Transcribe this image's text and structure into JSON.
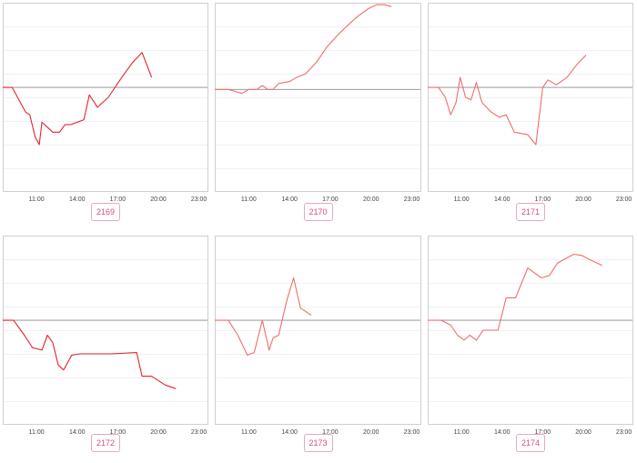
{
  "chart_data": [
    {
      "type": "line",
      "label": "2169",
      "line_color": "#e8212b",
      "x_ticks": [
        "11:00",
        "14:00",
        "17:00",
        "20:00",
        "23:00"
      ],
      "x_range": [
        8.5,
        23.7
      ],
      "y_range": [
        -4.2,
        3.4
      ],
      "baseline": 0,
      "x": [
        8.5,
        9.2,
        9.8,
        10.2,
        10.5,
        10.9,
        11.2,
        11.4,
        12.2,
        12.7,
        13.1,
        13.5,
        14.5,
        14.9,
        15.5,
        16.3,
        17.3,
        18.1,
        18.8,
        19.5
      ],
      "y": [
        0,
        0,
        -0.6,
        -1.0,
        -1.1,
        -2.0,
        -2.3,
        -1.4,
        -1.8,
        -1.8,
        -1.5,
        -1.5,
        -1.3,
        -0.3,
        -0.8,
        -0.4,
        0.4,
        1.0,
        1.4,
        0.4
      ]
    },
    {
      "type": "line",
      "label": "2170",
      "line_color": "#f36c6c",
      "x_ticks": [
        "11:00",
        "14:00",
        "17:00",
        "20:00",
        "23:00"
      ],
      "x_range": [
        8.5,
        23.7
      ],
      "y_range": [
        -2.6,
        2.2
      ],
      "baseline": 0,
      "x": [
        8.5,
        9.5,
        10.5,
        11.0,
        11.6,
        12.0,
        12.4,
        12.8,
        13.2,
        14.0,
        14.5,
        15.2,
        16.0,
        16.8,
        17.6,
        18.2,
        19.0,
        19.8,
        20.4,
        21.0,
        21.5
      ],
      "y": [
        0,
        0,
        -0.1,
        0,
        0,
        0.1,
        0,
        0,
        0.15,
        0.2,
        0.3,
        0.4,
        0.7,
        1.1,
        1.4,
        1.6,
        1.85,
        2.05,
        2.15,
        2.15,
        2.1
      ]
    },
    {
      "type": "line",
      "label": "2171",
      "line_color": "#f36c6c",
      "x_ticks": [
        "11:00",
        "14:00",
        "17:00",
        "20:00",
        "23:00"
      ],
      "x_range": [
        8.5,
        23.7
      ],
      "y_range": [
        -4.2,
        3.4
      ],
      "baseline": 0,
      "x": [
        8.5,
        9.3,
        9.8,
        10.2,
        10.6,
        10.9,
        11.3,
        11.7,
        12.1,
        12.5,
        13.2,
        13.8,
        14.3,
        14.9,
        15.9,
        16.5,
        17.0,
        17.4,
        18.0,
        18.8,
        19.5,
        20.2
      ],
      "y": [
        0,
        0,
        -0.4,
        -1.1,
        -0.6,
        0.4,
        -0.4,
        -0.5,
        0.2,
        -0.6,
        -1.0,
        -1.2,
        -1.1,
        -1.8,
        -1.9,
        -2.3,
        0,
        0.3,
        0.1,
        0.4,
        0.9,
        1.3
      ]
    },
    {
      "type": "line",
      "label": "2172",
      "line_color": "#e8212b",
      "x_ticks": [
        "11:00",
        "14:00",
        "17:00",
        "20:00",
        "23:00"
      ],
      "x_range": [
        8.5,
        23.7
      ],
      "y_range": [
        -4.2,
        3.4
      ],
      "baseline": 0,
      "x": [
        8.5,
        9.3,
        10.1,
        10.7,
        11.4,
        11.8,
        12.2,
        12.6,
        13.0,
        13.6,
        14.2,
        16.5,
        18.4,
        18.8,
        19.5,
        20.5,
        21.3
      ],
      "y": [
        0,
        0,
        -0.6,
        -1.1,
        -1.2,
        -0.6,
        -0.9,
        -1.8,
        -2.0,
        -1.4,
        -1.35,
        -1.35,
        -1.3,
        -2.25,
        -2.25,
        -2.6,
        -2.75
      ]
    },
    {
      "type": "line",
      "label": "2173",
      "line_color": "#f36c6c",
      "x_ticks": [
        "11:00",
        "14:00",
        "17:00",
        "20:00",
        "23:00"
      ],
      "x_range": [
        8.5,
        23.7
      ],
      "y_range": [
        -4.2,
        3.4
      ],
      "baseline": 0,
      "x": [
        8.5,
        9.5,
        10.2,
        10.9,
        11.4,
        12.0,
        12.5,
        12.8,
        13.2,
        13.8,
        14.3,
        14.8,
        15.6
      ],
      "y": [
        0,
        0,
        -0.6,
        -1.4,
        -1.3,
        0,
        -1.2,
        -0.7,
        -0.6,
        0.8,
        1.7,
        0.5,
        0.2
      ]
    },
    {
      "type": "line",
      "label": "2174",
      "line_color": "#f36c6c",
      "x_ticks": [
        "11:00",
        "14:00",
        "17:00",
        "20:00",
        "23:00"
      ],
      "x_range": [
        8.5,
        23.7
      ],
      "y_range": [
        -4.2,
        3.4
      ],
      "baseline": 0,
      "x": [
        8.5,
        9.5,
        10.2,
        10.7,
        11.2,
        11.6,
        12.1,
        12.6,
        13.2,
        13.7,
        14.3,
        15.0,
        15.9,
        16.9,
        17.5,
        18.1,
        18.6,
        19.3,
        19.9,
        20.6,
        21.4
      ],
      "y": [
        0,
        0,
        -0.2,
        -0.6,
        -0.8,
        -0.6,
        -0.8,
        -0.4,
        -0.4,
        -0.4,
        0.9,
        0.9,
        2.1,
        1.7,
        1.8,
        2.3,
        2.45,
        2.65,
        2.6,
        2.4,
        2.2
      ]
    }
  ]
}
